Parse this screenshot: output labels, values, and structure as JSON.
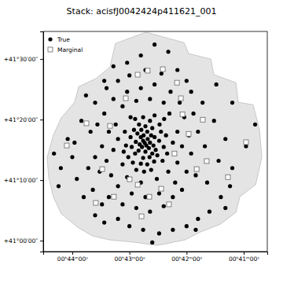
{
  "chart_data": {
    "type": "scatter",
    "title": "Stack: acisfJ0042424p411621_001",
    "xlim": [
      11.127,
      10.147
    ],
    "ylim": [
      40.97,
      41.576
    ],
    "xticks": [
      {
        "value": 11.0,
        "label": "00ʰ44ᵐ00ˢ"
      },
      {
        "value": 10.75,
        "label": "00ʰ43ᵐ00ˢ"
      },
      {
        "value": 10.5,
        "label": "00ʰ42ᵐ00ˢ"
      },
      {
        "value": 10.25,
        "label": "00ʰ41ᵐ00ˢ"
      }
    ],
    "yticks": [
      {
        "value": 41.5,
        "label": "+41°30′00″"
      },
      {
        "value": 41.3333,
        "label": "+41°20′00″"
      },
      {
        "value": 41.1667,
        "label": "+41°10′00″"
      },
      {
        "value": 41.0,
        "label": "+41°00′00″"
      }
    ],
    "legend": "upper left",
    "footprint": {
      "color": "#e4e4e4",
      "x": [
        10.811,
        10.677,
        10.511,
        10.491,
        10.394,
        10.381,
        10.284,
        10.274,
        10.209,
        10.181,
        10.171,
        10.198,
        10.267,
        10.284,
        10.353,
        10.439,
        10.508,
        10.628,
        10.732,
        10.835,
        10.911,
        10.972,
        11.048,
        11.083,
        11.103,
        11.11,
        11.083,
        11.048,
        10.99,
        10.972,
        10.897,
        10.835
      ],
      "y": [
        41.543,
        41.574,
        41.545,
        41.515,
        41.5,
        41.457,
        41.435,
        41.381,
        41.374,
        41.305,
        41.229,
        41.154,
        41.121,
        41.078,
        41.045,
        41.024,
        41.002,
        40.987,
        40.996,
        41.002,
        41.013,
        41.035,
        41.074,
        41.121,
        41.175,
        41.229,
        41.29,
        41.338,
        41.381,
        41.424,
        41.446,
        41.478
      ]
    },
    "series": [
      {
        "name": "True",
        "color": "#000000",
        "marker": "circle",
        "x": [
          10.683,
          10.69,
          10.676,
          10.695,
          10.67,
          10.7,
          10.665,
          10.688,
          10.705,
          10.66,
          10.68,
          10.71,
          10.655,
          10.715,
          10.672,
          10.698,
          10.645,
          10.722,
          10.65,
          10.725,
          10.64,
          10.73,
          10.662,
          10.69,
          10.635,
          10.74,
          10.68,
          10.708,
          10.65,
          10.62,
          10.745,
          10.628,
          10.7,
          10.672,
          10.612,
          10.755,
          10.642,
          10.735,
          10.66,
          10.725,
          10.6,
          10.765,
          10.618,
          10.69,
          10.605,
          10.77,
          10.655,
          10.72,
          10.59,
          10.775,
          10.585,
          10.64,
          10.745,
          10.686,
          10.598,
          10.78,
          10.56,
          10.54,
          10.575,
          10.8,
          10.82,
          10.81,
          10.6,
          10.66,
          10.72,
          10.78,
          10.63,
          10.7,
          10.76,
          10.58,
          10.54,
          10.52,
          10.84,
          10.85,
          10.83,
          10.8,
          10.55,
          10.62,
          10.68,
          10.74,
          10.51,
          10.53,
          10.57,
          10.64,
          10.7,
          10.76,
          10.82,
          10.86,
          10.87,
          10.88,
          10.5,
          10.49,
          10.6,
          10.66,
          10.72,
          10.78,
          10.84,
          10.56,
          10.52,
          10.89,
          10.9,
          10.48,
          10.47,
          10.48,
          10.61,
          10.68,
          10.75,
          10.8,
          10.85,
          10.9,
          10.92,
          10.93,
          10.91,
          10.87,
          10.46,
          10.45,
          10.58,
          10.64,
          10.7,
          10.76,
          10.82,
          10.54,
          10.5,
          10.43,
          10.42,
          10.41,
          10.38,
          10.36,
          10.33,
          10.3,
          10.24,
          10.2,
          10.35,
          10.4,
          10.45,
          10.5,
          10.56,
          10.62,
          10.69,
          10.75,
          10.8,
          10.86,
          10.9,
          10.95,
          10.98,
          11.0,
          11.02,
          11.05,
          11.06,
          10.96,
          10.94,
          10.86,
          10.99,
          11.08,
          10.65,
          10.46,
          10.31,
          10.33,
          10.37,
          10.3
        ],
        "values": [
          41.269,
          41.275,
          41.262,
          41.258,
          41.28,
          41.285,
          41.255,
          41.29,
          41.265,
          41.27,
          41.245,
          41.248,
          41.29,
          41.295,
          41.3,
          41.305,
          41.262,
          41.272,
          41.24,
          41.24,
          41.285,
          41.305,
          41.23,
          41.228,
          41.25,
          41.258,
          41.315,
          41.32,
          41.31,
          41.275,
          41.285,
          41.235,
          41.212,
          41.21,
          41.3,
          41.23,
          41.218,
          41.215,
          41.33,
          41.335,
          41.258,
          41.262,
          41.32,
          41.34,
          41.22,
          41.3,
          41.195,
          41.195,
          41.29,
          41.245,
          41.24,
          41.345,
          41.34,
          41.19,
          41.335,
          41.21,
          41.27,
          41.3,
          41.35,
          41.28,
          41.25,
          41.32,
          41.38,
          41.39,
          41.385,
          41.37,
          41.17,
          41.16,
          41.175,
          41.19,
          41.215,
          41.26,
          41.3,
          41.22,
          41.18,
          41.15,
          41.16,
          41.13,
          41.12,
          41.13,
          41.34,
          41.38,
          41.41,
          41.43,
          41.42,
          41.41,
          41.39,
          41.35,
          41.26,
          41.19,
          41.19,
          41.29,
          41.095,
          41.08,
          41.09,
          41.1,
          41.12,
          41.12,
          41.14,
          41.32,
          41.23,
          41.24,
          41.35,
          41.41,
          41.46,
          41.47,
          41.455,
          41.44,
          41.42,
          41.38,
          41.3,
          41.2,
          41.14,
          41.1,
          41.18,
          41.3,
          41.52,
          41.54,
          41.51,
          41.49,
          41.48,
          41.47,
          41.44,
          41.38,
          41.26,
          41.16,
          41.33,
          41.22,
          41.28,
          41.2,
          41.26,
          41.32,
          41.12,
          41.08,
          41.06,
          41.04,
          41.03,
          41.02,
          41.03,
          41.04,
          41.06,
          41.05,
          41.07,
          41.12,
          41.17,
          41.23,
          41.28,
          41.2,
          41.15,
          41.33,
          41.4,
          41.44,
          41.27,
          41.24,
          40.995,
          41.03,
          41.15,
          41.09,
          41.43,
          41.38
        ]
      },
      {
        "name": "Marginal",
        "color": "#666666",
        "marker": "square",
        "x": [
          10.67,
          10.604,
          10.714,
          10.525,
          10.766,
          10.938,
          10.835,
          10.429,
          10.518,
          10.412,
          10.456,
          10.24,
          10.714,
          10.611,
          10.749,
          10.663,
          10.577,
          10.697,
          10.818,
          10.897,
          10.869,
          10.553,
          11.024,
          10.542,
          10.319,
          10.491
        ],
        "values": [
          41.468,
          41.472,
          41.457,
          41.392,
          41.392,
          41.323,
          41.316,
          41.333,
          41.348,
          41.219,
          41.197,
          41.271,
          41.154,
          41.143,
          41.169,
          41.121,
          41.1,
          41.067,
          41.121,
          41.104,
          41.197,
          41.24,
          41.262,
          41.435,
          41.175,
          41.294
        ]
      }
    ]
  }
}
